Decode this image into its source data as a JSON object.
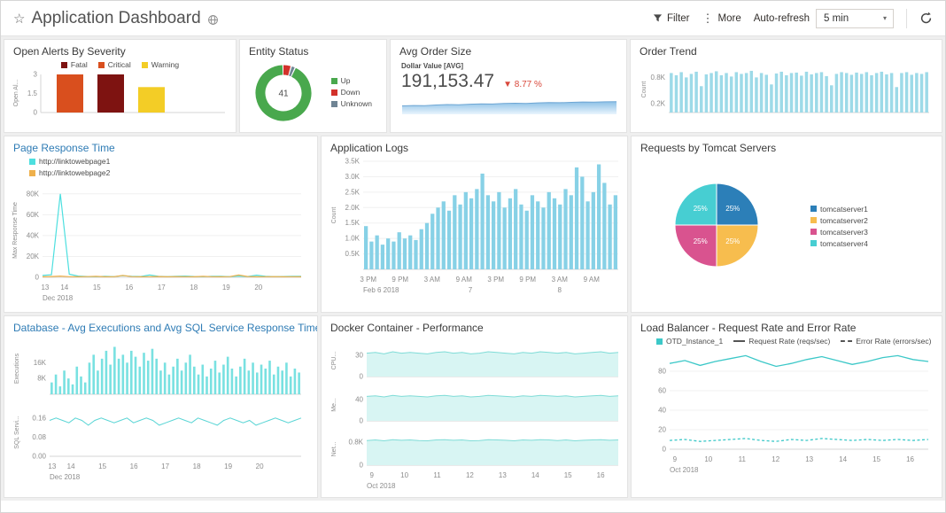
{
  "header": {
    "star_icon": "☆",
    "title": "Application Dashboard",
    "filter_label": "Filter",
    "more_icon": "⋮",
    "more_label": "More",
    "auto_refresh_label": "Auto-refresh",
    "auto_refresh_value": "5 min",
    "caret_icon": "▾"
  },
  "panels": {
    "open_alerts": {
      "title": "Open Alerts By Severity",
      "y_axis_label": "Open Al...",
      "y_max": 3,
      "y_ticks": [
        {
          "v": 0,
          "label": "0"
        },
        {
          "v": 1.5,
          "label": "1.5"
        },
        {
          "v": 3,
          "label": "3"
        }
      ],
      "legend": [
        {
          "label": "Fatal",
          "color": "#7e1311"
        },
        {
          "label": "Critical",
          "color": "#d94f1e"
        },
        {
          "label": "Warning",
          "color": "#f3cd26"
        }
      ],
      "bars": [
        {
          "severity": "Critical",
          "value": 3,
          "color": "#d94f1e"
        },
        {
          "severity": "Fatal",
          "value": 3,
          "color": "#7e1311"
        },
        {
          "severity": "Warning",
          "value": 2,
          "color": "#f3cd26"
        }
      ]
    },
    "entity_status": {
      "title": "Entity Status",
      "center_value": "41",
      "slices": [
        {
          "label": "Down",
          "value": 2,
          "color": "#d2312b"
        },
        {
          "label": "Unknown",
          "value": 1,
          "color": "#6f8494"
        },
        {
          "label": "Up",
          "value": 38,
          "color": "#49a84d"
        }
      ],
      "legend": [
        {
          "label": "Up",
          "color": "#49a84d"
        },
        {
          "label": "Down",
          "color": "#d2312b"
        },
        {
          "label": "Unknown",
          "color": "#6f8494"
        }
      ]
    },
    "avg_order": {
      "title": "Avg Order Size",
      "metric_label": "Dollar Value [AVG]",
      "value": "191,153.47",
      "delta": "▼ 8.77 %",
      "delta_color": "#d9483b",
      "spark": [
        0.5,
        0.52,
        0.51,
        0.55,
        0.58,
        0.57,
        0.6,
        0.62,
        0.61,
        0.64,
        0.66,
        0.65,
        0.68,
        0.7,
        0.69,
        0.71,
        0.73,
        0.72,
        0.74,
        0.75
      ]
    },
    "order_trend": {
      "title": "Order Trend",
      "y_axis_label": "Count",
      "y_max": 1.05,
      "y_ticks": [
        {
          "v": 0.2,
          "label": "0.2K"
        },
        {
          "v": 0.8,
          "label": "0.8K"
        }
      ],
      "color": "#9ddae8",
      "values": [
        0.9,
        0.85,
        0.92,
        0.8,
        0.88,
        0.93,
        0.6,
        0.87,
        0.9,
        0.94,
        0.85,
        0.9,
        0.82,
        0.92,
        0.88,
        0.9,
        0.95,
        0.8,
        0.9,
        0.86,
        0.64,
        0.89,
        0.93,
        0.85,
        0.9,
        0.91,
        0.84,
        0.93,
        0.87,
        0.9,
        0.92,
        0.83,
        0.62,
        0.88,
        0.92,
        0.9,
        0.86,
        0.91,
        0.88,
        0.92,
        0.85,
        0.9,
        0.93,
        0.87,
        0.9,
        0.58,
        0.9,
        0.92,
        0.86,
        0.9,
        0.88,
        0.92
      ]
    },
    "page_response": {
      "title": "Page Response Time",
      "y_axis_label": "Max Response Time",
      "y_max": 90,
      "y_ticks": [
        {
          "v": 0,
          "label": "0"
        },
        {
          "v": 20,
          "label": "20K"
        },
        {
          "v": 40,
          "label": "40K"
        },
        {
          "v": 60,
          "label": "60K"
        },
        {
          "v": 80,
          "label": "80K"
        }
      ],
      "legend": [
        {
          "label": "http://linktowebpage1",
          "color": "#4ddfdf"
        },
        {
          "label": "http://linktowebpage2",
          "color": "#eeb04c"
        }
      ],
      "series": [
        {
          "name": "http://linktowebpage1",
          "color": "#4ddfdf",
          "values": [
            1.8,
            2.5,
            80,
            3,
            1.2,
            0.8,
            0.6,
            0.9,
            0.7,
            1.5,
            1.0,
            0.8,
            2.2,
            1.0,
            0.7,
            0.9,
            1.2,
            0.8,
            0.6,
            1.0,
            0.9,
            0.7,
            1.1,
            0.8,
            2.0,
            0.9,
            0.7,
            0.8,
            1.0,
            0.9
          ]
        },
        {
          "name": "http://linktowebpage2",
          "color": "#eeb04c",
          "values": [
            0.5,
            0.8,
            1.2,
            0.6,
            0.5,
            0.7,
            0.9,
            0.5,
            0.6,
            1.8,
            0.7,
            0.5,
            0.6,
            0.8,
            0.5,
            0.7,
            0.6,
            0.5,
            0.9,
            0.6,
            0.5,
            0.7,
            2.2,
            0.8,
            0.5,
            0.6,
            0.7,
            0.5,
            0.6,
            0.5
          ]
        }
      ],
      "x_ticks": [
        {
          "label": "13",
          "f": 0.01
        },
        {
          "label": "14",
          "f": 0.085
        },
        {
          "label": "15",
          "f": 0.21
        },
        {
          "label": "16",
          "f": 0.335
        },
        {
          "label": "17",
          "f": 0.46
        },
        {
          "label": "18",
          "f": 0.585
        },
        {
          "label": "19",
          "f": 0.71
        },
        {
          "label": "20",
          "f": 0.835
        }
      ],
      "x_subtick": {
        "label": "Dec 2018",
        "f": 0.0,
        "anchor": "start"
      }
    },
    "app_logs": {
      "title": "Application Logs",
      "y_axis_label": "Count",
      "y_max": 3.5,
      "y_ticks": [
        {
          "v": 0.5,
          "label": "0.5K"
        },
        {
          "v": 1.0,
          "label": "1.0K"
        },
        {
          "v": 1.5,
          "label": "1.5K"
        },
        {
          "v": 2.0,
          "label": "2.0K"
        },
        {
          "v": 2.5,
          "label": "2.5K"
        },
        {
          "v": 3.0,
          "label": "3.0K"
        },
        {
          "v": 3.5,
          "label": "3.5K"
        }
      ],
      "color": "#87d1e6",
      "values": [
        1.4,
        0.9,
        1.1,
        0.8,
        1.0,
        0.9,
        1.2,
        1.0,
        1.1,
        0.95,
        1.3,
        1.5,
        1.8,
        2.0,
        2.2,
        1.9,
        2.4,
        2.1,
        2.5,
        2.3,
        2.6,
        3.1,
        2.4,
        2.2,
        2.5,
        2.0,
        2.3,
        2.6,
        2.1,
        1.9,
        2.4,
        2.2,
        2.0,
        2.5,
        2.3,
        2.1,
        2.6,
        2.4,
        3.3,
        3.0,
        2.2,
        2.5,
        3.4,
        2.8,
        2.1,
        2.4
      ],
      "x_ticks": [
        {
          "label": "3 PM",
          "f": 0.02
        },
        {
          "label": "9 PM",
          "f": 0.145
        },
        {
          "label": "3 AM",
          "f": 0.27
        },
        {
          "label": "9 AM",
          "f": 0.395
        },
        {
          "label": "3 PM",
          "f": 0.52
        },
        {
          "label": "9 PM",
          "f": 0.645
        },
        {
          "label": "3 AM",
          "f": 0.77
        },
        {
          "label": "9 AM",
          "f": 0.895
        }
      ],
      "day_ticks": [
        {
          "label": "Feb 6 2018",
          "f": 0.0,
          "anchor": "start"
        },
        {
          "label": "7",
          "f": 0.42
        },
        {
          "label": "8",
          "f": 0.77
        }
      ]
    },
    "tomcat": {
      "title": "Requests by Tomcat Servers",
      "slices": [
        {
          "label": "tomcatserver1",
          "value": 25,
          "display": "25%",
          "color": "#2c7fb8"
        },
        {
          "label": "tomcatserver2",
          "value": 25,
          "display": "25%",
          "color": "#f7bd4e"
        },
        {
          "label": "tomcatserver3",
          "value": 25,
          "display": "25%",
          "color": "#d9538f"
        },
        {
          "label": "tomcatserver4",
          "value": 25,
          "display": "25%",
          "color": "#47ced2"
        }
      ],
      "legend": [
        {
          "label": "tomcatserver1",
          "color": "#2c7fb8"
        },
        {
          "label": "tomcatserver2",
          "color": "#f7bd4e"
        },
        {
          "label": "tomcatserver3",
          "color": "#d9538f"
        },
        {
          "label": "tomcatserver4",
          "color": "#47ced2"
        }
      ]
    },
    "database": {
      "title": "Database - Avg Executions and Avg SQL Service Response Time",
      "executions": {
        "label": "Executions",
        "y_max": 26,
        "y_ticks": [
          {
            "v": 8,
            "label": "8K"
          },
          {
            "v": 16,
            "label": "16K"
          }
        ],
        "color": "#79e1e1",
        "values": [
          6,
          10,
          4,
          12,
          8,
          5,
          14,
          9,
          6,
          16,
          20,
          12,
          18,
          22,
          15,
          24,
          18,
          20,
          16,
          22,
          19,
          14,
          21,
          17,
          23,
          18,
          12,
          16,
          10,
          14,
          18,
          12,
          16,
          20,
          14,
          10,
          15,
          9,
          13,
          17,
          11,
          15,
          19,
          13,
          9,
          14,
          18,
          12,
          16,
          11,
          15,
          13,
          17,
          10,
          14,
          12,
          16,
          9,
          13,
          11
        ]
      },
      "sql": {
        "label": "SQL Servi...",
        "y_max": 0.2,
        "y_ticks": [
          {
            "v": 0,
            "label": "0.00"
          },
          {
            "v": 0.08,
            "label": "0.08"
          },
          {
            "v": 0.16,
            "label": "0.16"
          }
        ],
        "color": "#5ad5d5",
        "values": [
          0.15,
          0.16,
          0.15,
          0.14,
          0.16,
          0.15,
          0.13,
          0.15,
          0.16,
          0.15,
          0.14,
          0.15,
          0.16,
          0.14,
          0.15,
          0.16,
          0.15,
          0.13,
          0.14,
          0.15,
          0.16,
          0.15,
          0.14,
          0.16,
          0.15,
          0.14,
          0.13,
          0.15,
          0.16,
          0.15,
          0.14,
          0.15,
          0.13,
          0.14,
          0.15,
          0.16,
          0.15,
          0.14,
          0.15,
          0.16
        ]
      },
      "x_ticks": [
        {
          "label": "13",
          "f": 0.01
        },
        {
          "label": "14",
          "f": 0.085
        },
        {
          "label": "15",
          "f": 0.21
        },
        {
          "label": "16",
          "f": 0.335
        },
        {
          "label": "17",
          "f": 0.46
        },
        {
          "label": "18",
          "f": 0.585
        },
        {
          "label": "19",
          "f": 0.71
        },
        {
          "label": "20",
          "f": 0.835
        }
      ],
      "x_subtick": {
        "label": "Dec 2018",
        "f": 0.0,
        "anchor": "start"
      }
    },
    "docker": {
      "title": "Docker Container - Performance",
      "fill": "#d8f5f3",
      "stroke": "#7fdcd7",
      "bands": [
        {
          "label": "CPU...",
          "y_max": 45,
          "y_ticks": [
            {
              "v": 0,
              "label": "0"
            },
            {
              "v": 30,
              "label": "30"
            }
          ],
          "values": [
            33,
            34,
            32,
            35,
            33,
            34,
            33,
            32,
            34,
            35,
            33,
            34,
            32,
            33,
            35,
            34,
            33,
            32,
            34,
            33,
            35,
            34,
            33,
            34,
            32,
            33,
            34,
            35,
            33,
            34
          ]
        },
        {
          "label": "Me...",
          "y_max": 60,
          "y_ticks": [
            {
              "v": 0,
              "label": "0"
            },
            {
              "v": 40,
              "label": "40"
            }
          ],
          "values": [
            46,
            47,
            45,
            48,
            46,
            47,
            46,
            45,
            47,
            48,
            46,
            47,
            45,
            46,
            48,
            47,
            46,
            45,
            47,
            46,
            48,
            47,
            46,
            47,
            45,
            46,
            47,
            48,
            46,
            47
          ]
        },
        {
          "label": "Net...",
          "y_max": 1.1,
          "y_ticks": [
            {
              "v": 0,
              "label": "0"
            },
            {
              "v": 0.8,
              "label": "0.8K"
            }
          ],
          "values": [
            0.85,
            0.87,
            0.84,
            0.88,
            0.86,
            0.87,
            0.85,
            0.84,
            0.87,
            0.88,
            0.86,
            0.87,
            0.84,
            0.85,
            0.88,
            0.87,
            0.86,
            0.84,
            0.87,
            0.86,
            0.88,
            0.87,
            0.85,
            0.87,
            0.84,
            0.86,
            0.87,
            0.88,
            0.86,
            0.87
          ]
        }
      ],
      "x_ticks": [
        {
          "label": "9",
          "f": 0.02
        },
        {
          "label": "10",
          "f": 0.15
        },
        {
          "label": "11",
          "f": 0.28
        },
        {
          "label": "12",
          "f": 0.41
        },
        {
          "label": "13",
          "f": 0.54
        },
        {
          "label": "14",
          "f": 0.67
        },
        {
          "label": "15",
          "f": 0.8
        },
        {
          "label": "16",
          "f": 0.93
        }
      ],
      "x_subtick": {
        "label": "Oct 2018",
        "f": 0.0,
        "anchor": "start"
      }
    },
    "load_balancer": {
      "title": "Load Balancer - Request Rate and Error Rate",
      "y_max": 100,
      "y_ticks": [
        {
          "v": 0,
          "label": "0"
        },
        {
          "v": 20,
          "label": "20"
        },
        {
          "v": 40,
          "label": "40"
        },
        {
          "v": 60,
          "label": "60"
        },
        {
          "v": 80,
          "label": "80"
        }
      ],
      "legend": [
        {
          "label": "OTD_Instance_1",
          "color": "#3cc8c8",
          "marker": "square"
        },
        {
          "label": "Request Rate (reqs/sec)",
          "color": "#555555",
          "marker": "line"
        },
        {
          "label": "Error Rate (errors/sec)",
          "color": "#555555",
          "marker": "dash"
        }
      ],
      "series": [
        {
          "name": "Request Rate (reqs/sec)",
          "style": "solid",
          "color": "#3cc8c8",
          "values": [
            88,
            91,
            86,
            90,
            93,
            96,
            90,
            85,
            88,
            92,
            95,
            91,
            87,
            90,
            94,
            96,
            92,
            90
          ]
        },
        {
          "name": "Error Rate (errors/sec)",
          "style": "dash",
          "color": "#3cc8c8",
          "values": [
            9,
            10,
            8,
            9,
            10,
            11,
            9,
            8,
            10,
            9,
            11,
            10,
            9,
            10,
            9,
            10,
            9,
            10
          ]
        }
      ],
      "x_ticks": [
        {
          "label": "9",
          "f": 0.02
        },
        {
          "label": "10",
          "f": 0.15
        },
        {
          "label": "11",
          "f": 0.28
        },
        {
          "label": "12",
          "f": 0.41
        },
        {
          "label": "13",
          "f": 0.54
        },
        {
          "label": "14",
          "f": 0.67
        },
        {
          "label": "15",
          "f": 0.8
        },
        {
          "label": "16",
          "f": 0.93
        }
      ],
      "x_subtick": {
        "label": "Oct 2018",
        "f": 0.0,
        "anchor": "start"
      }
    }
  }
}
